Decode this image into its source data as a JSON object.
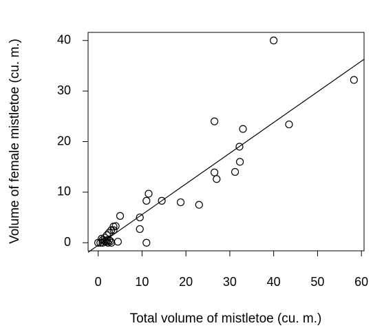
{
  "chart_data": {
    "type": "scatter",
    "x_label": "Total volume of mistletoe (cu. m.)",
    "y_label": "Volume of female mistletoe (cu. m.)",
    "x": [
      0,
      0.5,
      0.8,
      1,
      1,
      1.5,
      1.5,
      1.8,
      2,
      2,
      2.2,
      2.5,
      2.5,
      2.8,
      3,
      3,
      3.5,
      3.5,
      4,
      4.5,
      5,
      9.5,
      9.5,
      11,
      11,
      11.5,
      14.5,
      18.8,
      23,
      26.5,
      26.5,
      27,
      31.2,
      32.2,
      32.3,
      33,
      40,
      43.5,
      58.3
    ],
    "y": [
      0,
      0,
      0.8,
      0.5,
      0,
      1,
      0.3,
      0.2,
      1.5,
      0.5,
      0,
      2,
      0.5,
      0.3,
      2.5,
      0,
      3.2,
      2.5,
      3.3,
      0.2,
      5.3,
      5,
      2.7,
      8.3,
      0,
      9.7,
      8.3,
      8,
      7.5,
      24,
      13.9,
      12.6,
      14,
      19,
      16,
      22.5,
      40,
      23.4,
      32.2
    ],
    "fit": {
      "intercept": -0.5,
      "slope": 0.607
    },
    "xlim": [
      -2.3,
      60.6
    ],
    "ylim": [
      -1.6,
      41.6
    ],
    "xticks": [
      0,
      10,
      20,
      30,
      40,
      50,
      60
    ],
    "yticks": [
      0,
      10,
      20,
      30,
      40
    ],
    "color": "#000000"
  }
}
